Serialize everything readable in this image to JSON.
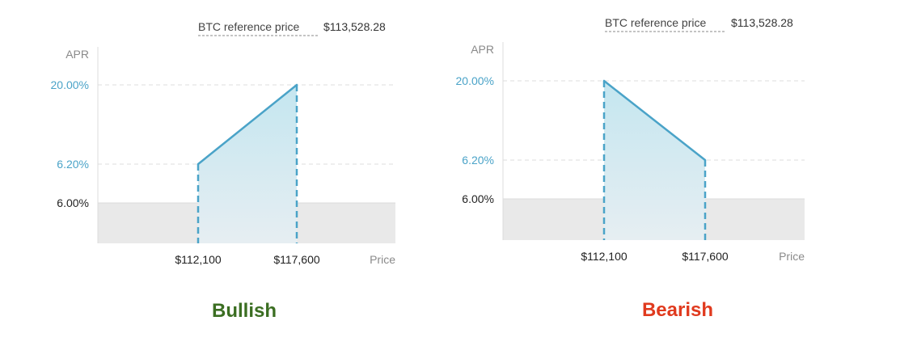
{
  "chart_data": [
    {
      "type": "area",
      "title": "Bullish",
      "reference_label": "BTC reference price",
      "reference_value": "$113,528.28",
      "ylabel": "APR",
      "xlabel": "Price",
      "base_apr": "6.00%",
      "accent_ticks": [
        "20.00%",
        "6.20%"
      ],
      "x_ticks": [
        "$112,100",
        "$117,600"
      ],
      "points": [
        {
          "price": 112100,
          "apr": 6.2
        },
        {
          "price": 117600,
          "apr": 20.0
        }
      ],
      "caption_color": "#3b6e22"
    },
    {
      "type": "area",
      "title": "Bearish",
      "reference_label": "BTC reference price",
      "reference_value": "$113,528.28",
      "ylabel": "APR",
      "xlabel": "Price",
      "base_apr": "6.00%",
      "accent_ticks": [
        "20.00%",
        "6.20%"
      ],
      "x_ticks": [
        "$112,100",
        "$117,600"
      ],
      "points": [
        {
          "price": 112100,
          "apr": 20.0
        },
        {
          "price": 117600,
          "apr": 6.2
        }
      ],
      "caption_color": "#e03a1e"
    }
  ],
  "colors": {
    "accent": "#4aa3c8",
    "fill_top": "#c4e6f0",
    "fill_bottom": "#e6eef2",
    "base_band": "#e9e9e9",
    "grid": "#dddddd",
    "axis": "#dcdcdc"
  }
}
